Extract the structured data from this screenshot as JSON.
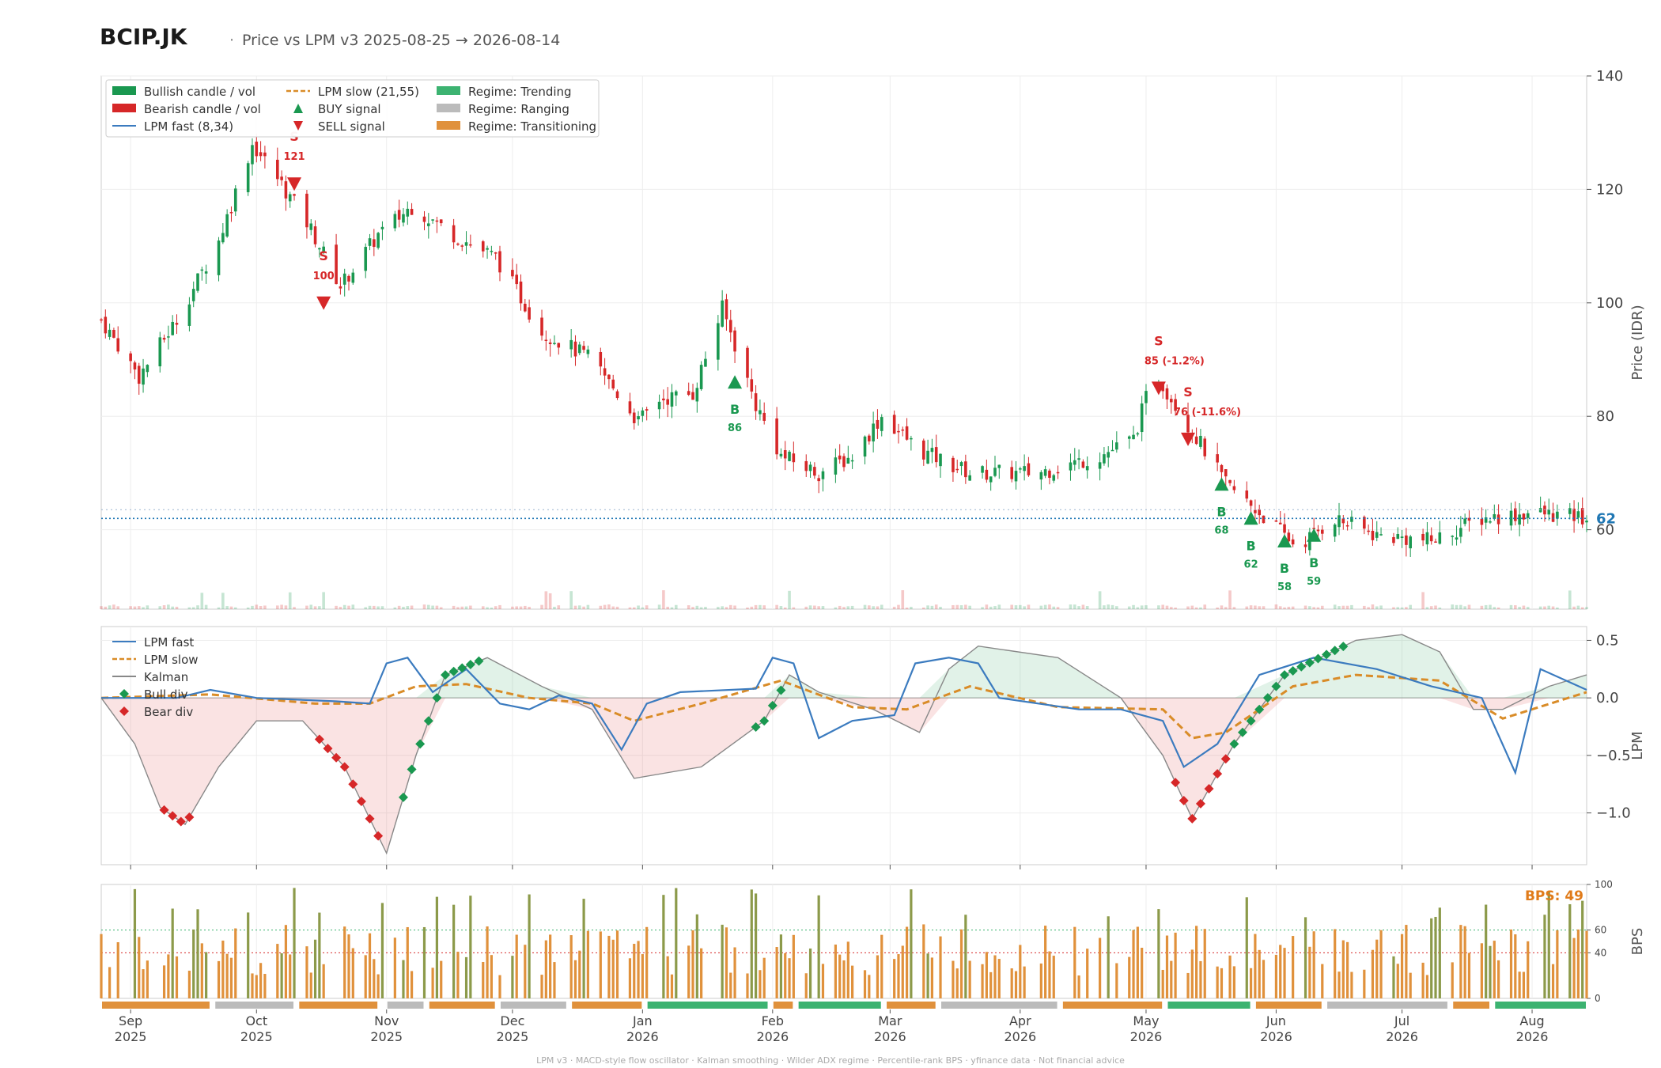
{
  "header": {
    "ticker": "BCIP.JK",
    "subtitle": "Price vs LPM v3  2025-08-25 → 2026-08-14"
  },
  "footer": "LPM v3  ·  MACD-style flow oscillator  ·  Kalman smoothing  ·  Wilder ADX regime  ·  Percentile-rank BPS  ·  yfinance data  ·  Not financial advice",
  "colors": {
    "bull": "#1a9850",
    "bear": "#d62728",
    "fast": "#3b7bbf",
    "slow": "#d98c28",
    "kalman": "#888888",
    "trending": "#3cb371",
    "ranging": "#bbbbbb",
    "transitioning": "#e0913c",
    "bps_olive": "#8c9a4a",
    "bps_orange": "#e0913c",
    "last_price": "#1f77b4"
  },
  "chart_data": [
    {
      "type": "candlestick",
      "title": "",
      "ylabel": "Price (IDR)",
      "ylim": [
        46,
        140
      ],
      "yticks": [
        60,
        80,
        100,
        120,
        140
      ],
      "x_range": [
        "2025-08-25",
        "2026-08-14"
      ],
      "last_price_label": "62",
      "legend_placement": "top-left",
      "legend": [
        "Bullish candle / vol",
        "Bearish candle / vol",
        "LPM fast (8,34)",
        "LPM slow (21,55)",
        "BUY signal",
        "SELL signal",
        "Regime: Trending",
        "Regime: Ranging",
        "Regime: Transitioning"
      ],
      "close_path": [
        [
          "2025-08-25",
          97
        ],
        [
          "2025-09-03",
          87
        ],
        [
          "2025-09-12",
          97
        ],
        [
          "2025-09-22",
          111
        ],
        [
          "2025-09-30",
          128
        ],
        [
          "2025-10-06",
          122
        ],
        [
          "2025-10-14",
          113
        ],
        [
          "2025-10-21",
          103
        ],
        [
          "2025-10-30",
          112
        ],
        [
          "2025-11-07",
          117
        ],
        [
          "2025-11-17",
          112
        ],
        [
          "2025-11-27",
          108
        ],
        [
          "2025-12-08",
          95
        ],
        [
          "2025-12-20",
          90
        ],
        [
          "2025-12-31",
          79
        ],
        [
          "2026-01-05",
          83
        ],
        [
          "2026-01-13",
          84
        ],
        [
          "2026-01-20",
          99
        ],
        [
          "2026-01-28",
          82
        ],
        [
          "2026-02-03",
          73
        ],
        [
          "2026-02-12",
          70
        ],
        [
          "2026-02-20",
          73
        ],
        [
          "2026-02-27",
          80
        ],
        [
          "2026-03-08",
          74
        ],
        [
          "2026-03-20",
          70
        ],
        [
          "2026-04-05",
          70
        ],
        [
          "2026-04-20",
          73
        ],
        [
          "2026-04-28",
          76
        ],
        [
          "2026-05-03",
          88
        ],
        [
          "2026-05-08",
          82
        ],
        [
          "2026-05-15",
          74
        ],
        [
          "2026-05-20",
          68
        ],
        [
          "2026-05-28",
          63
        ],
        [
          "2026-06-06",
          57
        ],
        [
          "2026-06-15",
          62
        ],
        [
          "2026-06-25",
          59
        ],
        [
          "2026-07-08",
          58
        ],
        [
          "2026-07-20",
          62
        ],
        [
          "2026-08-01",
          63
        ],
        [
          "2026-08-14",
          62
        ]
      ],
      "signals": [
        {
          "type": "SELL",
          "date": "2025-10-10",
          "price": 121,
          "label": "S",
          "value": "121"
        },
        {
          "type": "SELL",
          "date": "2025-10-17",
          "price": 100,
          "label": "S",
          "value": "100"
        },
        {
          "type": "BUY",
          "date": "2026-01-23",
          "price": 86,
          "label": "B",
          "value": "86"
        },
        {
          "type": "SELL",
          "date": "2026-05-04",
          "price": 85,
          "label": "S",
          "value": "85 (-1.2%)"
        },
        {
          "type": "SELL",
          "date": "2026-05-11",
          "price": 76,
          "label": "S",
          "value": "76 (-11.6%)"
        },
        {
          "type": "BUY",
          "date": "2026-05-19",
          "price": 68,
          "label": "B",
          "value": "68"
        },
        {
          "type": "BUY",
          "date": "2026-05-26",
          "price": 62,
          "label": "B",
          "value": "62"
        },
        {
          "type": "BUY",
          "date": "2026-06-03",
          "price": 58,
          "label": "B",
          "value": "58"
        },
        {
          "type": "BUY",
          "date": "2026-06-10",
          "price": 59,
          "label": "B",
          "value": "59"
        }
      ]
    },
    {
      "type": "line",
      "ylabel": "LPM",
      "ylim": [
        -1.45,
        0.62
      ],
      "yticks": [
        0.5,
        0.0,
        -0.5,
        -1.0
      ],
      "legend": [
        "LPM fast",
        "LPM slow",
        "Kalman",
        "Bull div",
        "Bear div"
      ],
      "series": [
        {
          "name": "LPM fast",
          "points": [
            [
              "2025-08-25",
              0
            ],
            [
              "2025-09-12",
              0
            ],
            [
              "2025-09-20",
              0.07
            ],
            [
              "2025-10-01",
              0
            ],
            [
              "2025-10-20",
              -0.03
            ],
            [
              "2025-10-28",
              -0.05
            ],
            [
              "2025-11-01",
              0.3
            ],
            [
              "2025-11-06",
              0.35
            ],
            [
              "2025-11-12",
              0.05
            ],
            [
              "2025-11-20",
              0.25
            ],
            [
              "2025-11-28",
              -0.05
            ],
            [
              "2025-12-05",
              -0.1
            ],
            [
              "2025-12-12",
              0.02
            ],
            [
              "2025-12-20",
              -0.05
            ],
            [
              "2025-12-27",
              -0.45
            ],
            [
              "2026-01-02",
              -0.05
            ],
            [
              "2026-01-10",
              0.05
            ],
            [
              "2026-01-28",
              0.08
            ],
            [
              "2026-02-01",
              0.35
            ],
            [
              "2026-02-06",
              0.3
            ],
            [
              "2026-02-12",
              -0.35
            ],
            [
              "2026-02-20",
              -0.2
            ],
            [
              "2026-03-02",
              -0.15
            ],
            [
              "2026-03-07",
              0.3
            ],
            [
              "2026-03-15",
              0.35
            ],
            [
              "2026-03-22",
              0.3
            ],
            [
              "2026-03-27",
              0
            ],
            [
              "2026-04-15",
              -0.1
            ],
            [
              "2026-04-25",
              -0.1
            ],
            [
              "2026-05-05",
              -0.2
            ],
            [
              "2026-05-10",
              -0.6
            ],
            [
              "2026-05-18",
              -0.4
            ],
            [
              "2026-05-28",
              0.2
            ],
            [
              "2026-06-10",
              0.35
            ],
            [
              "2026-06-25",
              0.25
            ],
            [
              "2026-07-08",
              0.1
            ],
            [
              "2026-07-20",
              0
            ],
            [
              "2026-07-28",
              -0.65
            ],
            [
              "2026-08-03",
              0.25
            ],
            [
              "2026-08-14",
              0.07
            ]
          ]
        },
        {
          "name": "LPM slow",
          "points": [
            [
              "2025-08-25",
              0
            ],
            [
              "2025-09-20",
              0.03
            ],
            [
              "2025-10-15",
              -0.05
            ],
            [
              "2025-10-28",
              -0.05
            ],
            [
              "2025-11-08",
              0.1
            ],
            [
              "2025-11-20",
              0.12
            ],
            [
              "2025-12-05",
              0
            ],
            [
              "2025-12-20",
              -0.05
            ],
            [
              "2025-12-30",
              -0.2
            ],
            [
              "2026-01-15",
              -0.05
            ],
            [
              "2026-02-03",
              0.15
            ],
            [
              "2026-02-20",
              -0.08
            ],
            [
              "2026-03-05",
              -0.1
            ],
            [
              "2026-03-20",
              0.1
            ],
            [
              "2026-04-10",
              -0.08
            ],
            [
              "2026-05-05",
              -0.1
            ],
            [
              "2026-05-12",
              -0.35
            ],
            [
              "2026-05-20",
              -0.3
            ],
            [
              "2026-06-05",
              0.1
            ],
            [
              "2026-06-20",
              0.2
            ],
            [
              "2026-07-10",
              0.15
            ],
            [
              "2026-07-25",
              -0.18
            ],
            [
              "2026-08-14",
              0.05
            ]
          ]
        },
        {
          "name": "Kalman",
          "points": [
            [
              "2025-08-25",
              0
            ],
            [
              "2025-09-02",
              -0.4
            ],
            [
              "2025-09-08",
              -0.95
            ],
            [
              "2025-09-14",
              -1.1
            ],
            [
              "2025-09-22",
              -0.6
            ],
            [
              "2025-10-01",
              -0.2
            ],
            [
              "2025-10-12",
              -0.2
            ],
            [
              "2025-10-22",
              -0.6
            ],
            [
              "2025-11-01",
              -1.35
            ],
            [
              "2025-11-08",
              -0.5
            ],
            [
              "2025-11-15",
              0.2
            ],
            [
              "2025-11-25",
              0.35
            ],
            [
              "2025-12-08",
              0.1
            ],
            [
              "2025-12-20",
              -0.1
            ],
            [
              "2025-12-30",
              -0.7
            ],
            [
              "2026-01-15",
              -0.6
            ],
            [
              "2026-01-30",
              -0.2
            ],
            [
              "2026-02-05",
              0.2
            ],
            [
              "2026-02-12",
              0.05
            ],
            [
              "2026-02-25",
              -0.1
            ],
            [
              "2026-03-08",
              -0.3
            ],
            [
              "2026-03-15",
              0.25
            ],
            [
              "2026-03-22",
              0.45
            ],
            [
              "2026-04-10",
              0.35
            ],
            [
              "2026-04-25",
              0
            ],
            [
              "2026-05-05",
              -0.5
            ],
            [
              "2026-05-12",
              -1.05
            ],
            [
              "2026-05-22",
              -0.4
            ],
            [
              "2026-06-03",
              0.2
            ],
            [
              "2026-06-20",
              0.5
            ],
            [
              "2026-07-01",
              0.55
            ],
            [
              "2026-07-10",
              0.4
            ],
            [
              "2026-07-18",
              -0.1
            ],
            [
              "2026-07-25",
              -0.1
            ],
            [
              "2026-08-05",
              0.1
            ],
            [
              "2026-08-14",
              0.2
            ]
          ]
        }
      ]
    },
    {
      "type": "bar",
      "ylabel": "BPS",
      "ylim": [
        0,
        100
      ],
      "yticks": [
        0,
        40,
        60,
        100
      ],
      "value_label": "BPS: 49",
      "x_ticks": [
        {
          "month": "Sep",
          "year": "2025",
          "date": "2025-09-01"
        },
        {
          "month": "Oct",
          "year": "2025",
          "date": "2025-10-01"
        },
        {
          "month": "Nov",
          "year": "2025",
          "date": "2025-11-01"
        },
        {
          "month": "Dec",
          "year": "2025",
          "date": "2025-12-01"
        },
        {
          "month": "Jan",
          "year": "2026",
          "date": "2026-01-01"
        },
        {
          "month": "Feb",
          "year": "2026",
          "date": "2026-02-01"
        },
        {
          "month": "Mar",
          "year": "2026",
          "date": "2026-03-01"
        },
        {
          "month": "Apr",
          "year": "2026",
          "date": "2026-04-01"
        },
        {
          "month": "May",
          "year": "2026",
          "date": "2026-05-01"
        },
        {
          "month": "Jun",
          "year": "2026",
          "date": "2026-06-01"
        },
        {
          "month": "Jul",
          "year": "2026",
          "date": "2026-07-01"
        },
        {
          "month": "Aug",
          "year": "2026",
          "date": "2026-08-01"
        }
      ],
      "regimes": [
        [
          "2025-08-25",
          "2025-09-20",
          "transitioning"
        ],
        [
          "2025-09-21",
          "2025-10-10",
          "ranging"
        ],
        [
          "2025-10-11",
          "2025-10-30",
          "transitioning"
        ],
        [
          "2025-11-01",
          "2025-11-10",
          "ranging"
        ],
        [
          "2025-11-11",
          "2025-11-27",
          "transitioning"
        ],
        [
          "2025-11-28",
          "2025-12-14",
          "ranging"
        ],
        [
          "2025-12-15",
          "2026-01-01",
          "transitioning"
        ],
        [
          "2026-01-02",
          "2026-01-31",
          "trending"
        ],
        [
          "2026-02-01",
          "2026-02-06",
          "transitioning"
        ],
        [
          "2026-02-07",
          "2026-02-27",
          "trending"
        ],
        [
          "2026-02-28",
          "2026-03-12",
          "transitioning"
        ],
        [
          "2026-03-13",
          "2026-04-10",
          "ranging"
        ],
        [
          "2026-04-11",
          "2026-05-05",
          "transitioning"
        ],
        [
          "2026-05-06",
          "2026-05-26",
          "trending"
        ],
        [
          "2026-05-27",
          "2026-06-12",
          "transitioning"
        ],
        [
          "2026-06-13",
          "2026-07-12",
          "ranging"
        ],
        [
          "2026-07-13",
          "2026-07-22",
          "transitioning"
        ],
        [
          "2026-07-23",
          "2026-08-14",
          "trending"
        ]
      ]
    }
  ]
}
